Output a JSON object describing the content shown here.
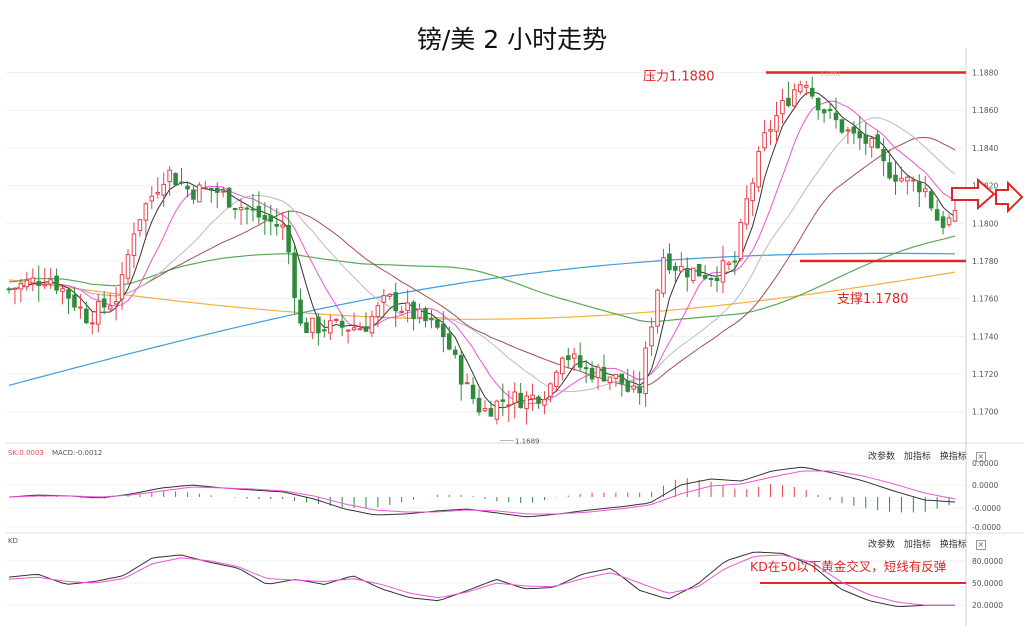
{
  "title": "镑/美 2 小时走势",
  "panels": {
    "macd": {
      "label": "SK:0.0003",
      "label2": "MACD:-0.0012",
      "buttons": [
        "改参数",
        "加指标",
        "换指标"
      ],
      "close": "×",
      "ticks": [
        "0.0000",
        "0.0000",
        "-0.0000",
        "-0.0000"
      ]
    },
    "kd": {
      "label": "KD",
      "buttons": [
        "改参数",
        "加指标",
        "换指标"
      ],
      "close": "×",
      "ticks": [
        "80.0000",
        "50.0000",
        "20.0000"
      ],
      "annotation": "KD在50以下黄金交叉，短线有反弹"
    }
  },
  "chart_data": {
    "type": "candlestick",
    "instrument": "GBP/USD",
    "timeframe": "2H",
    "ylim": [
      1.1685,
      1.1893
    ],
    "y_ticks": [
      1.188,
      1.186,
      1.184,
      1.182,
      1.18,
      1.178,
      1.176,
      1.174,
      1.172,
      1.17
    ],
    "y_tick_labels": [
      "1.1880",
      "1.1860",
      "1.1840",
      "1.1820",
      "1.1800",
      "1.1780",
      "1.1760",
      "1.1740",
      "1.1720",
      "1.1700"
    ],
    "annotations": {
      "resistance": {
        "label": "压力1.1880",
        "value": 1.188
      },
      "support": {
        "label": "支撑1.1780",
        "value": 1.178
      },
      "low_label": {
        "label": "1.1689",
        "value": 1.1689
      },
      "high_label": {
        "label": "1.1881",
        "value": 1.1881
      }
    },
    "series_colors": {
      "up": "#e8414b",
      "down": "#2e8b3a",
      "ma_black": "#333333",
      "ma_magenta": "#ee55d8",
      "ma_grey": "#bbbbbb",
      "ma_brown": "#a05050",
      "ma_green": "#5aa85a",
      "ma_blue": "#3f9bdc",
      "ma_orange": "#f5b03c",
      "sr_line": "#e02626"
    },
    "candle_count": 160,
    "close_path": [
      [
        0,
        1.1765
      ],
      [
        10,
        1.1772
      ],
      [
        15,
        1.1762
      ],
      [
        20,
        1.175
      ],
      [
        28,
        1.1762
      ],
      [
        32,
        1.18
      ],
      [
        40,
        1.1828
      ],
      [
        46,
        1.1817
      ],
      [
        52,
        1.1818
      ],
      [
        58,
        1.181
      ],
      [
        64,
        1.1803
      ],
      [
        70,
        1.1797
      ],
      [
        74,
        1.1745
      ],
      [
        82,
        1.1745
      ],
      [
        90,
        1.1745
      ],
      [
        96,
        1.176
      ],
      [
        104,
        1.175
      ],
      [
        110,
        1.1742
      ],
      [
        116,
        1.1713
      ],
      [
        120,
        1.17
      ],
      [
        126,
        1.1707
      ],
      [
        132,
        1.1707
      ],
      [
        137,
        1.1712
      ],
      [
        140,
        1.1733
      ],
      [
        146,
        1.1722
      ],
      [
        152,
        1.172
      ],
      [
        156,
        1.1715
      ],
      [
        158,
        1.1708
      ],
      [
        160,
        1.1712
      ],
      [
        164,
        1.176
      ],
      [
        166,
        1.1783
      ],
      [
        170,
        1.1776
      ],
      [
        178,
        1.1773
      ],
      [
        184,
        1.1778
      ],
      [
        187,
        1.181
      ],
      [
        192,
        1.1847
      ],
      [
        198,
        1.1868
      ],
      [
        202,
        1.1878
      ],
      [
        204,
        1.1868
      ],
      [
        208,
        1.1857
      ],
      [
        214,
        1.1846
      ],
      [
        218,
        1.1843
      ],
      [
        222,
        1.183
      ],
      [
        228,
        1.1822
      ],
      [
        232,
        1.182
      ],
      [
        236,
        1.18
      ],
      [
        240,
        1.1802
      ]
    ],
    "macd": {
      "zero_label": "0.0000",
      "dif": [
        0,
        0.2,
        0.1,
        -0.1,
        0.3,
        0.9,
        1.2,
        0.9,
        0.7,
        0.5,
        -0.2,
        -1.2,
        -1.8,
        -1.7,
        -1.4,
        -1.2,
        -1.6,
        -2.0,
        -1.7,
        -1.3,
        -1.0,
        -0.6,
        1.2,
        1.8,
        1.6,
        2.6,
        3.0,
        2.4,
        1.6,
        0.6,
        -0.3,
        -0.5
      ],
      "dea": [
        0,
        0.1,
        0.1,
        0.0,
        0.2,
        0.6,
        1.0,
        0.9,
        0.8,
        0.6,
        0.1,
        -0.7,
        -1.3,
        -1.5,
        -1.5,
        -1.3,
        -1.4,
        -1.7,
        -1.7,
        -1.5,
        -1.2,
        -0.8,
        0.3,
        1.1,
        1.3,
        2.0,
        2.6,
        2.6,
        2.1,
        1.3,
        0.4,
        -0.2
      ]
    },
    "kd": {
      "k": [
        58,
        62,
        48,
        52,
        60,
        84,
        88,
        78,
        70,
        48,
        55,
        48,
        60,
        42,
        30,
        26,
        40,
        55,
        42,
        44,
        62,
        70,
        40,
        28,
        48,
        80,
        92,
        90,
        74,
        42,
        26,
        18,
        20,
        20
      ],
      "d": [
        55,
        58,
        52,
        50,
        56,
        76,
        84,
        80,
        72,
        56,
        54,
        52,
        56,
        48,
        36,
        30,
        38,
        50,
        46,
        45,
        56,
        64,
        50,
        36,
        44,
        70,
        86,
        88,
        78,
        52,
        34,
        24,
        20,
        20
      ],
      "level": 50
    }
  }
}
